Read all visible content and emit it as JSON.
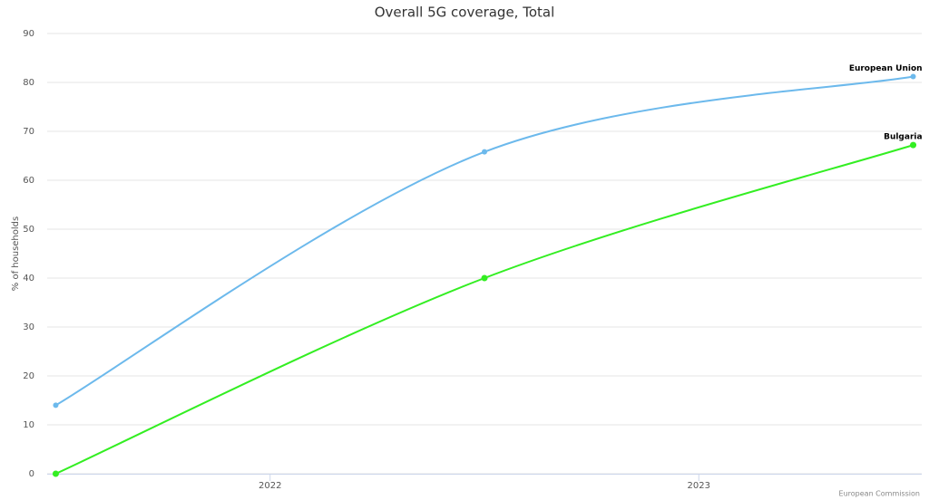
{
  "chart_data": {
    "type": "line",
    "title": "Overall 5G coverage, Total",
    "y_label": "% of households",
    "credit": "European Commission",
    "x": [
      2021.5,
      2022.5,
      2023.5
    ],
    "xlim": [
      2021.48,
      2023.52
    ],
    "xticks": [
      2022,
      2023
    ],
    "ylim": [
      0,
      90
    ],
    "yticks": [
      0,
      10,
      20,
      30,
      40,
      50,
      60,
      70,
      80,
      90
    ],
    "grid": true,
    "smooth": true,
    "series": [
      {
        "name": "European Union",
        "color": "#6cb9ec",
        "values": [
          14,
          65.8,
          81.2
        ]
      },
      {
        "name": "Bulgaria",
        "color": "#33ee22",
        "values": [
          0,
          40,
          67.2
        ]
      }
    ]
  }
}
